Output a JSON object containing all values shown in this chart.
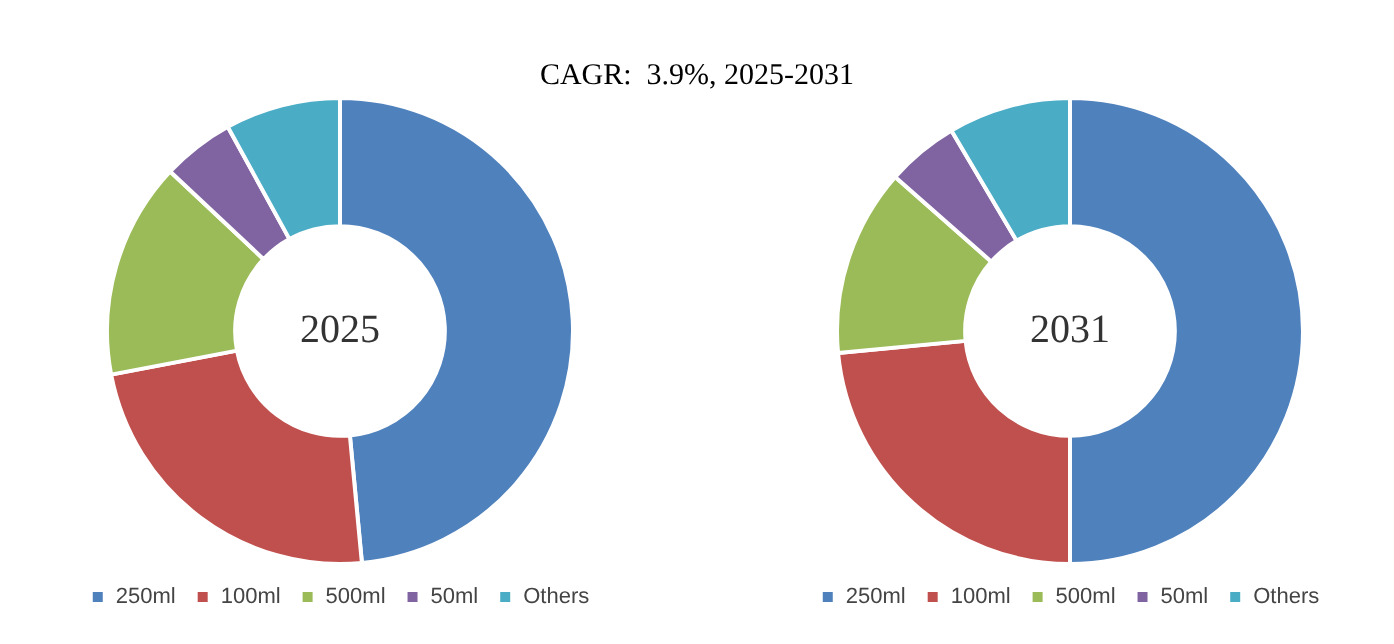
{
  "chart_data": [
    {
      "type": "donut",
      "title": "2025",
      "annotations": [
        "CAGR:  3.9%, 2025-2031"
      ],
      "categories": [
        "250ml",
        "100ml",
        "500ml",
        "50ml",
        "Others"
      ],
      "values": [
        48.5,
        23.5,
        15,
        5,
        8
      ],
      "colors": [
        "#4f81bd",
        "#c0504d",
        "#9bbb59",
        "#8064a2",
        "#4bacc6"
      ],
      "legend": "bottom"
    },
    {
      "type": "donut",
      "title": "2031",
      "categories": [
        "250ml",
        "100ml",
        "500ml",
        "50ml",
        "Others"
      ],
      "values": [
        50,
        23.5,
        13,
        5,
        8.5
      ],
      "colors": [
        "#4f81bd",
        "#c0504d",
        "#9bbb59",
        "#8064a2",
        "#4bacc6"
      ],
      "legend": "bottom"
    }
  ]
}
